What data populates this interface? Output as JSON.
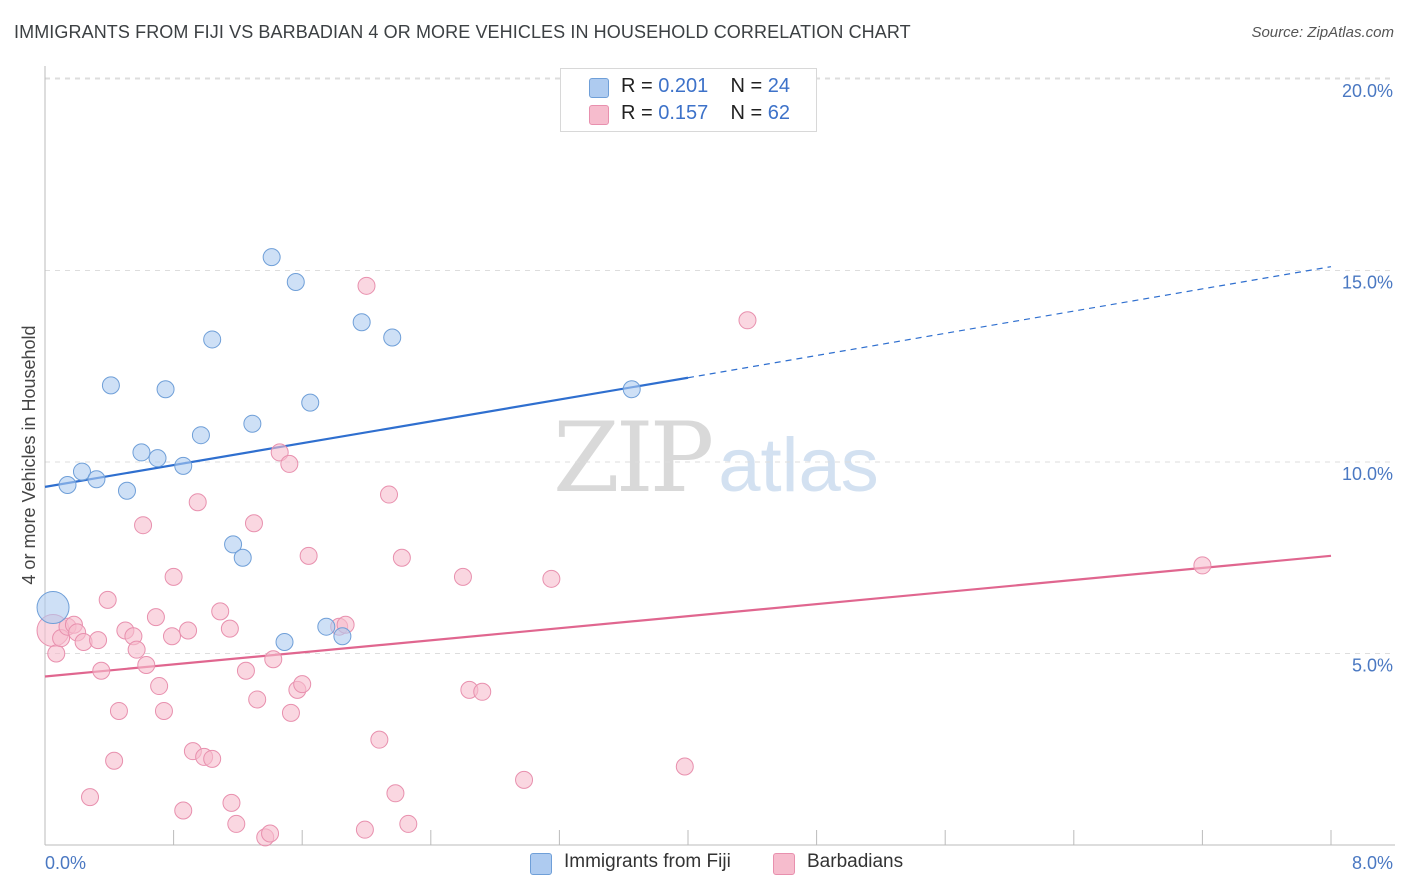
{
  "title": "IMMIGRANTS FROM FIJI VS BARBADIAN 4 OR MORE VEHICLES IN HOUSEHOLD CORRELATION CHART",
  "source": "Source: ZipAtlas.com",
  "watermark": {
    "zip": "ZIP",
    "atlas": "atlas"
  },
  "colors": {
    "fiji_fill": "#aecbf0",
    "fiji_stroke": "#6f9fd8",
    "fiji_line": "#2f6fcf",
    "barb_fill": "#f6bccd",
    "barb_stroke": "#e890ae",
    "barb_line": "#e0668f",
    "tick_text": "#4a78c2",
    "grid": "#dddddd"
  },
  "legend_top": {
    "rows": [
      {
        "r_label": "R =",
        "r_value": "0.201",
        "n_label": "N =",
        "n_value": "24"
      },
      {
        "r_label": "R =",
        "r_value": "0.157",
        "n_label": "N =",
        "n_value": "62"
      }
    ]
  },
  "legend_bottom": {
    "items": [
      "Immigrants from Fiji",
      "Barbadians"
    ]
  },
  "chart_data": {
    "type": "scatter",
    "title": "IMMIGRANTS FROM FIJI VS BARBADIAN 4 OR MORE VEHICLES IN HOUSEHOLD CORRELATION CHART",
    "xlabel": "",
    "ylabel": "4 or more Vehicles in Household",
    "xlim": [
      0,
      8
    ],
    "ylim": [
      0,
      20.5
    ],
    "x_tick_labels": [
      "0.0%",
      "8.0%"
    ],
    "y_ticks": [
      5,
      10,
      15,
      20
    ],
    "y_tick_labels": [
      "5.0%",
      "10.0%",
      "15.0%",
      "20.0%"
    ],
    "grid": true,
    "legend_position": "top-center",
    "series": [
      {
        "name": "Immigrants from Fiji",
        "r": 0.201,
        "n": 24,
        "trend": {
          "x0": 0.0,
          "y0": 9.35,
          "x1": 4.0,
          "y1": 12.2,
          "dash_to_x": 8.0,
          "dash_to_y": 15.1
        },
        "points": [
          {
            "x": 0.05,
            "y": 6.2,
            "big": true
          },
          {
            "x": 0.14,
            "y": 9.4
          },
          {
            "x": 0.23,
            "y": 9.75
          },
          {
            "x": 0.32,
            "y": 9.55
          },
          {
            "x": 0.41,
            "y": 12.0
          },
          {
            "x": 0.51,
            "y": 9.25
          },
          {
            "x": 0.6,
            "y": 10.25
          },
          {
            "x": 0.7,
            "y": 10.1
          },
          {
            "x": 0.75,
            "y": 11.9
          },
          {
            "x": 0.86,
            "y": 9.9
          },
          {
            "x": 0.97,
            "y": 10.7
          },
          {
            "x": 1.04,
            "y": 13.2
          },
          {
            "x": 1.17,
            "y": 7.85
          },
          {
            "x": 1.23,
            "y": 7.5
          },
          {
            "x": 1.29,
            "y": 11.0
          },
          {
            "x": 1.41,
            "y": 15.35
          },
          {
            "x": 1.49,
            "y": 5.3
          },
          {
            "x": 1.56,
            "y": 14.7
          },
          {
            "x": 1.65,
            "y": 11.55
          },
          {
            "x": 1.75,
            "y": 5.7
          },
          {
            "x": 1.85,
            "y": 5.45
          },
          {
            "x": 1.97,
            "y": 13.65
          },
          {
            "x": 2.16,
            "y": 13.25
          },
          {
            "x": 3.65,
            "y": 11.9
          }
        ]
      },
      {
        "name": "Barbadians",
        "r": 0.157,
        "n": 62,
        "trend": {
          "x0": 0.0,
          "y0": 4.4,
          "x1": 8.0,
          "y1": 7.55
        },
        "points": [
          {
            "x": 0.05,
            "y": 5.6,
            "big": true
          },
          {
            "x": 0.07,
            "y": 5.0
          },
          {
            "x": 0.1,
            "y": 5.4
          },
          {
            "x": 0.14,
            "y": 5.7
          },
          {
            "x": 0.18,
            "y": 5.75
          },
          {
            "x": 0.2,
            "y": 5.55
          },
          {
            "x": 0.24,
            "y": 5.3
          },
          {
            "x": 0.28,
            "y": 1.25
          },
          {
            "x": 0.33,
            "y": 5.35
          },
          {
            "x": 0.35,
            "y": 4.55
          },
          {
            "x": 0.39,
            "y": 6.4
          },
          {
            "x": 0.43,
            "y": 2.2
          },
          {
            "x": 0.46,
            "y": 3.5
          },
          {
            "x": 0.5,
            "y": 5.6
          },
          {
            "x": 0.55,
            "y": 5.45
          },
          {
            "x": 0.57,
            "y": 5.1
          },
          {
            "x": 0.61,
            "y": 8.35
          },
          {
            "x": 0.63,
            "y": 4.7
          },
          {
            "x": 0.69,
            "y": 5.95
          },
          {
            "x": 0.71,
            "y": 4.15
          },
          {
            "x": 0.74,
            "y": 3.5
          },
          {
            "x": 0.79,
            "y": 5.45
          },
          {
            "x": 0.8,
            "y": 7.0
          },
          {
            "x": 0.86,
            "y": 0.9
          },
          {
            "x": 0.89,
            "y": 5.6
          },
          {
            "x": 0.92,
            "y": 2.45
          },
          {
            "x": 0.95,
            "y": 8.95
          },
          {
            "x": 0.99,
            "y": 2.3
          },
          {
            "x": 1.04,
            "y": 2.25
          },
          {
            "x": 1.09,
            "y": 6.1
          },
          {
            "x": 1.15,
            "y": 5.65
          },
          {
            "x": 1.16,
            "y": 1.1
          },
          {
            "x": 1.19,
            "y": 0.55
          },
          {
            "x": 1.25,
            "y": 4.55
          },
          {
            "x": 1.3,
            "y": 8.4
          },
          {
            "x": 1.32,
            "y": 3.8
          },
          {
            "x": 1.37,
            "y": 0.2
          },
          {
            "x": 1.4,
            "y": 0.3
          },
          {
            "x": 1.42,
            "y": 4.85
          },
          {
            "x": 1.46,
            "y": 10.25
          },
          {
            "x": 1.52,
            "y": 9.95
          },
          {
            "x": 1.53,
            "y": 3.45
          },
          {
            "x": 1.57,
            "y": 4.05
          },
          {
            "x": 1.6,
            "y": 4.2
          },
          {
            "x": 1.64,
            "y": 7.55
          },
          {
            "x": 1.83,
            "y": 5.7
          },
          {
            "x": 1.87,
            "y": 5.75
          },
          {
            "x": 1.99,
            "y": 0.4
          },
          {
            "x": 2.0,
            "y": 14.6
          },
          {
            "x": 2.08,
            "y": 2.75
          },
          {
            "x": 2.14,
            "y": 9.15
          },
          {
            "x": 2.18,
            "y": 1.35
          },
          {
            "x": 2.22,
            "y": 7.5
          },
          {
            "x": 2.26,
            "y": 0.55
          },
          {
            "x": 2.6,
            "y": 7.0
          },
          {
            "x": 2.64,
            "y": 4.05
          },
          {
            "x": 2.72,
            "y": 4.0
          },
          {
            "x": 2.98,
            "y": 1.7
          },
          {
            "x": 3.15,
            "y": 6.95
          },
          {
            "x": 3.98,
            "y": 2.05
          },
          {
            "x": 4.37,
            "y": 13.7
          },
          {
            "x": 7.2,
            "y": 7.3
          }
        ]
      }
    ]
  }
}
